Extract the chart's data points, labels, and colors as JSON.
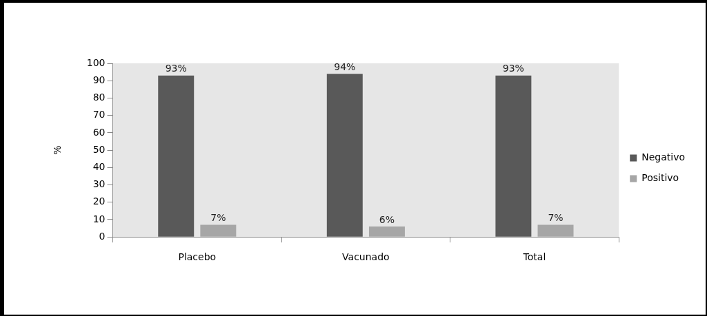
{
  "chart_data": {
    "type": "bar",
    "ylabel": "%",
    "categories": [
      "Placebo",
      "Vacunado",
      "Total"
    ],
    "series": [
      {
        "name": "Negativo",
        "color": "#595959",
        "values": [
          93,
          94,
          93
        ],
        "value_labels": [
          "93%",
          "94%",
          "93%"
        ]
      },
      {
        "name": "Positivo",
        "color": "#a6a6a6",
        "values": [
          7,
          6,
          7
        ],
        "value_labels": [
          "7%",
          "6%",
          "7%"
        ]
      }
    ],
    "ylim": [
      0,
      100
    ],
    "yticks": [
      0,
      10,
      20,
      30,
      40,
      50,
      60,
      70,
      80,
      90,
      100
    ],
    "grid": false,
    "legend": "right"
  }
}
